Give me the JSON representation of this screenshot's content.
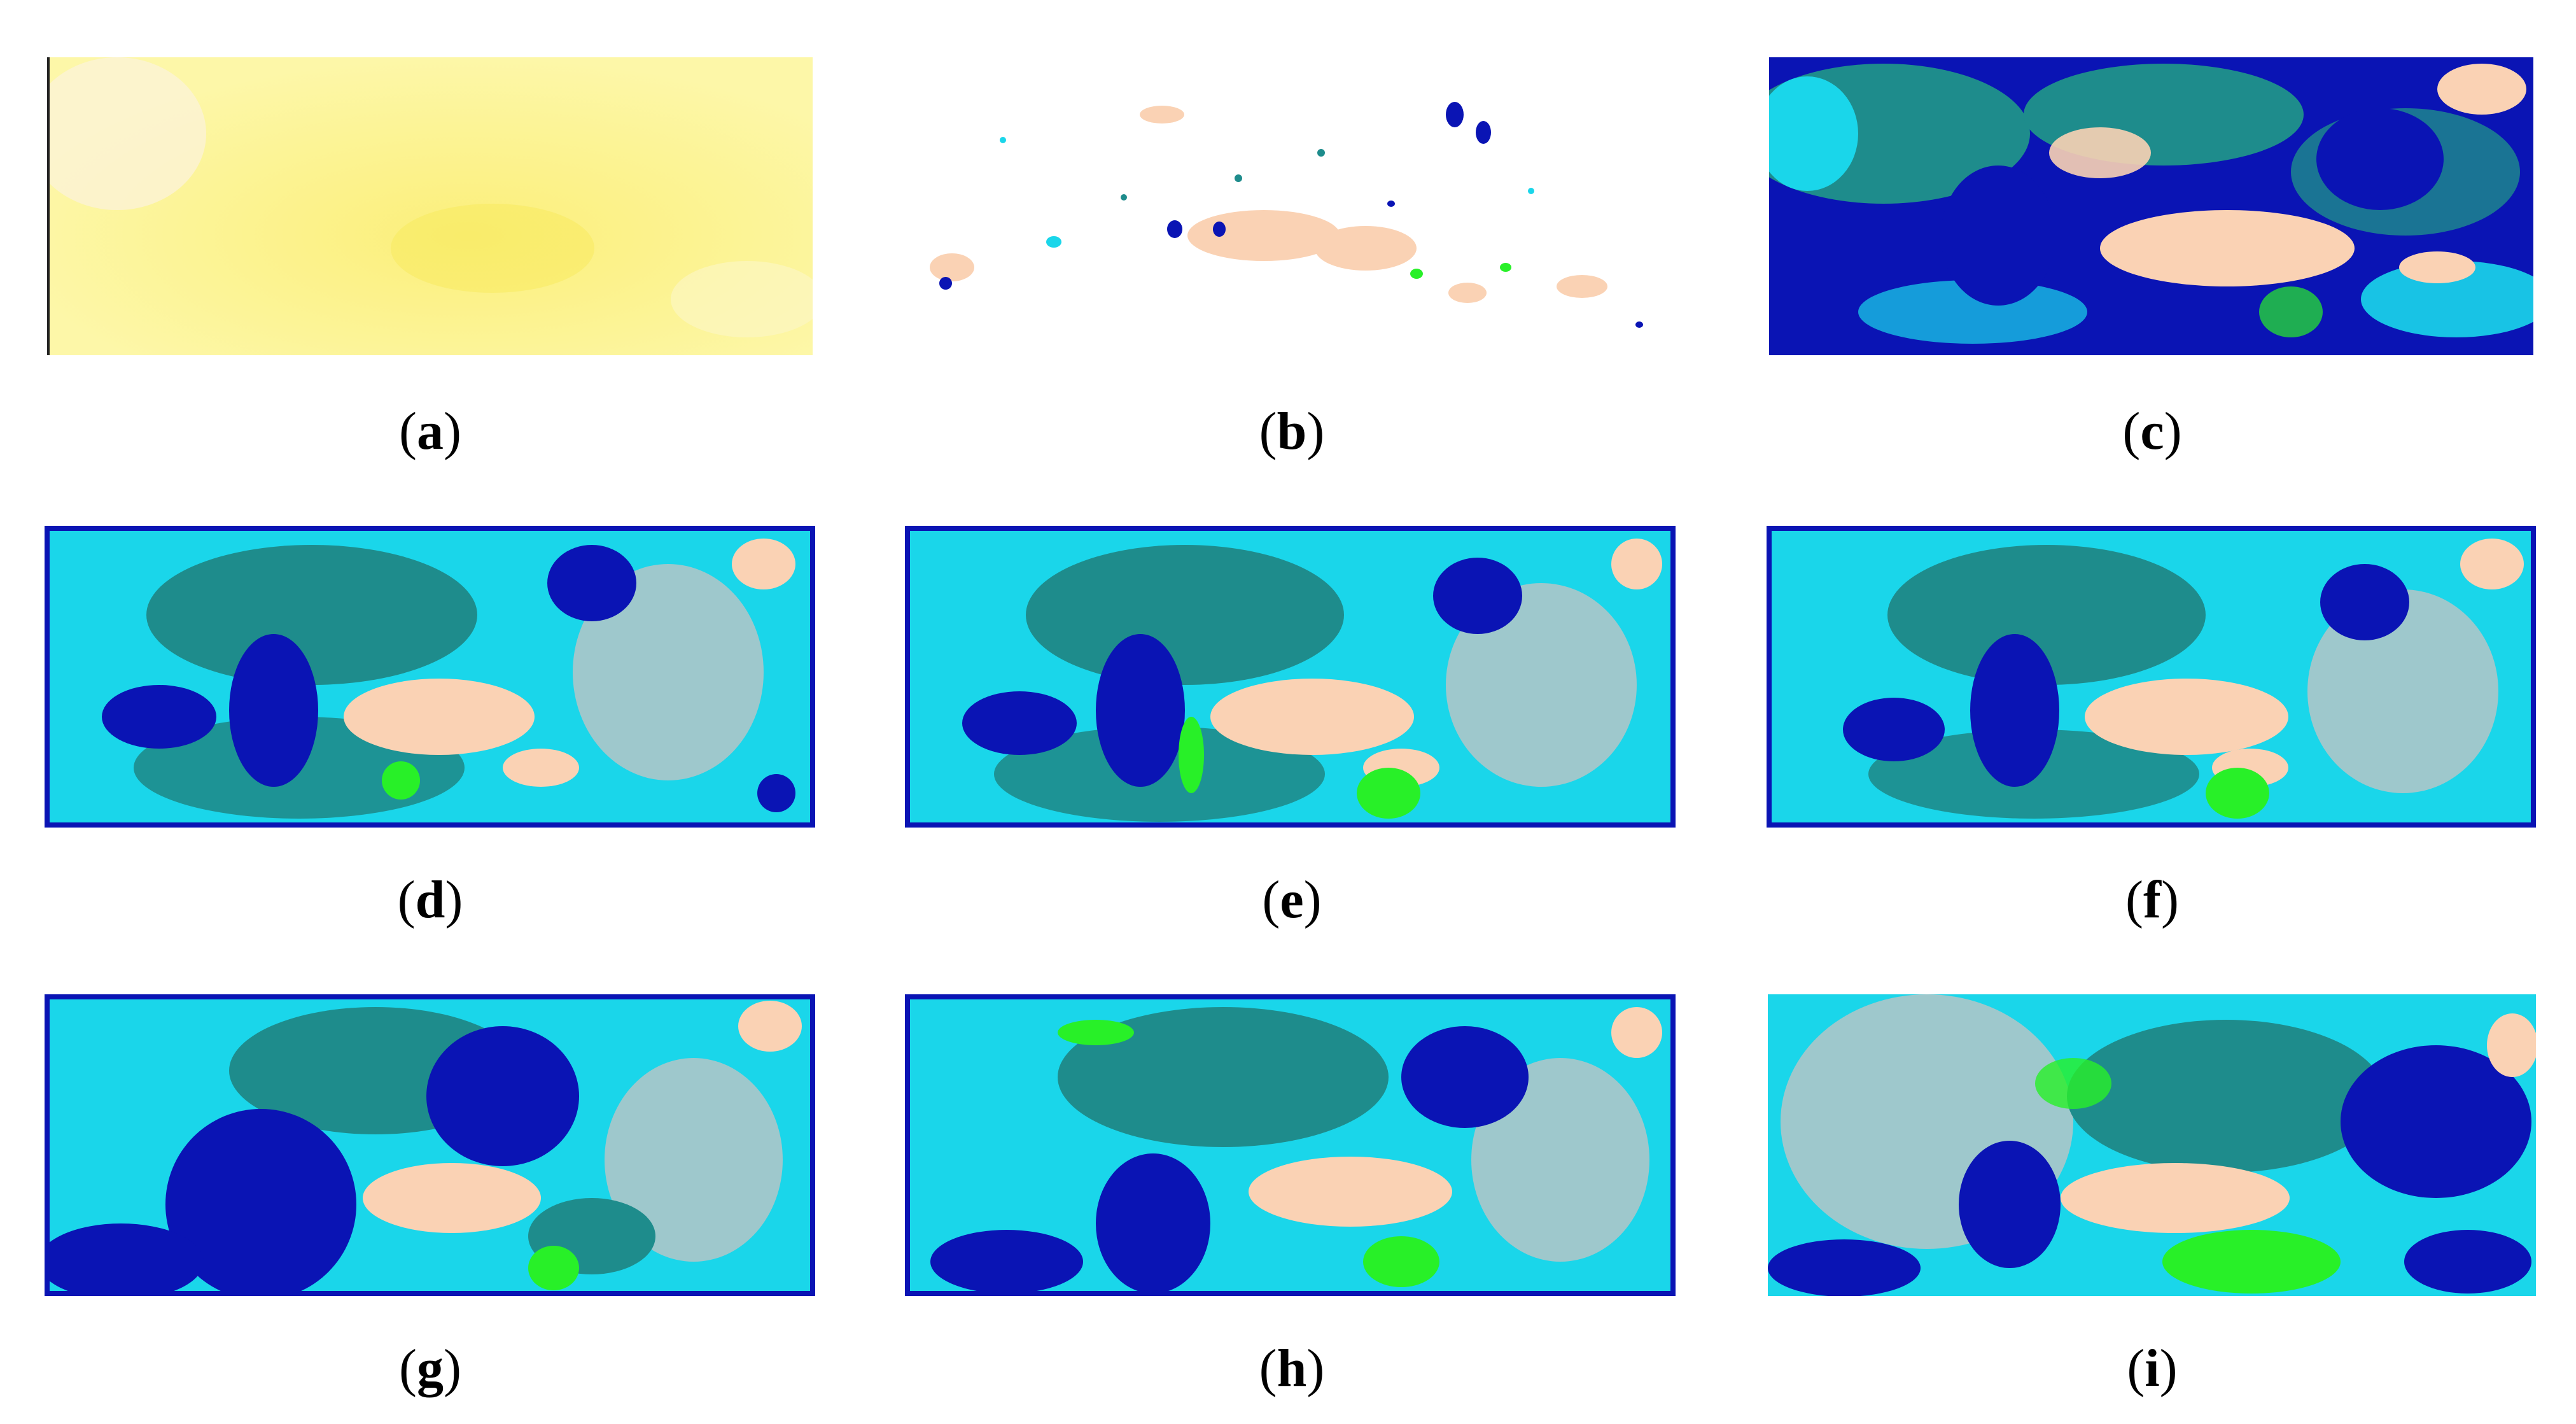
{
  "panels": [
    {
      "id": "a",
      "caption": "a"
    },
    {
      "id": "b",
      "caption": "b"
    },
    {
      "id": "c",
      "caption": "c"
    },
    {
      "id": "d",
      "caption": "d"
    },
    {
      "id": "e",
      "caption": "e"
    },
    {
      "id": "f",
      "caption": "f"
    },
    {
      "id": "g",
      "caption": "g"
    },
    {
      "id": "h",
      "caption": "h"
    },
    {
      "id": "i",
      "caption": "i"
    }
  ],
  "colors": {
    "dark_blue": "#0a14b4",
    "cyan": "#1ad6ea",
    "teal": "#1e8c8c",
    "grey_blue": "#9ec8cc",
    "peach": "#fad2b4",
    "green": "#28f028",
    "yellow_base": "#fdf7a8"
  }
}
